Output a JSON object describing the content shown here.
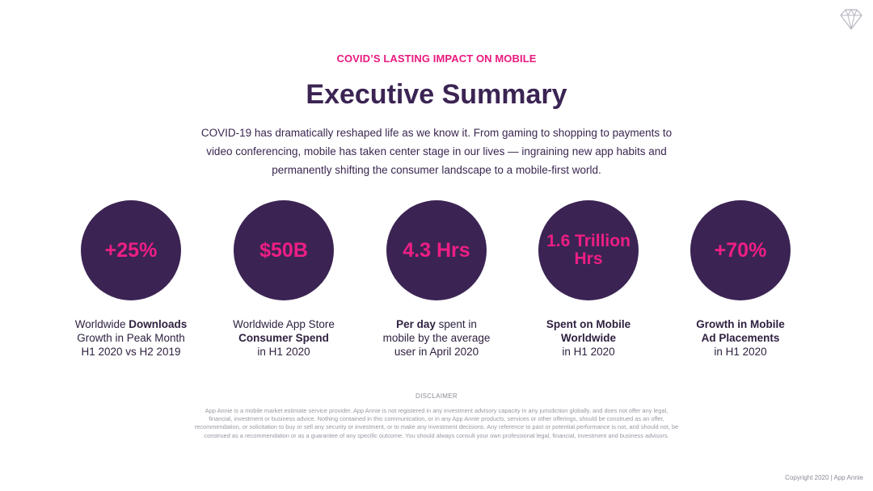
{
  "header": {
    "eyebrow": "COVID’S LASTING IMPACT ON MOBILE",
    "title": "Executive Summary",
    "intro": "COVID-19 has dramatically reshaped life as we know it. From gaming to shopping to payments to video conferencing, mobile has taken center stage in our lives — ingraining new app habits and permanently shifting the consumer landscape to a mobile-first world."
  },
  "logo": {
    "icon": "diamond-icon"
  },
  "stats": [
    {
      "value": "+25%",
      "cap_a": "Worldwide ",
      "cap_b": "Downloads",
      "cap_c": "Growth in Peak Month",
      "cap_d": "H1 2020 vs H2 2019"
    },
    {
      "value": "$50B",
      "cap_a": "Worldwide App Store",
      "cap_b": "Consumer Spend",
      "cap_c": "in H1 2020"
    },
    {
      "value": "4.3 Hrs",
      "cap_b": "Per day",
      "cap_a": " spent in",
      "cap_c": "mobile by the average",
      "cap_d": "user in April 2020"
    },
    {
      "value": "1.6 Trillion Hrs",
      "cap_b1": "Spent on Mobile",
      "cap_b2": "Worldwide",
      "cap_c": "in H1 2020"
    },
    {
      "value": "+70%",
      "cap_b1": "Growth in Mobile",
      "cap_b2": "Ad Placements",
      "cap_c": "in H1 2020"
    }
  ],
  "footer": {
    "disclaimer_title": "DISCLAIMER",
    "disclaimer": "App Annie is a mobile market estimate service provider. App Annie is not registered in any investment advisory capacity in any jurisdiction globally, and does not offer any legal, financial, investment or business advice. Nothing contained in this communication, or in any App Annie products, services or other offerings, should be construed as an offer, recommendation, or solicitation to buy or sell any security or investment, or to make any investment decisions. Any reference to past or potential performance is not, and should not, be construed as a recommendation or as a guarantee of any specific outcome. You should always consult your own professional legal, financial, investment and business advisors.",
    "copyright": "Copyright 2020 | App Annie"
  },
  "colors": {
    "accent": "#ee1e84",
    "circle": "#3b2453",
    "text": "#3a2750"
  }
}
